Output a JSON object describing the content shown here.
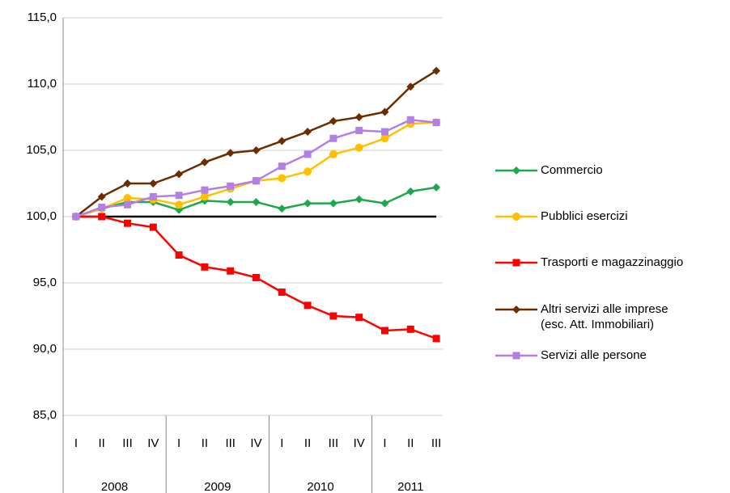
{
  "chart_data": {
    "type": "line",
    "categories": [
      "I",
      "II",
      "III",
      "IV",
      "I",
      "II",
      "III",
      "IV",
      "I",
      "II",
      "III",
      "IV",
      "I",
      "II",
      "III"
    ],
    "category_groups": [
      "2008",
      "2008",
      "2008",
      "2008",
      "2009",
      "2009",
      "2009",
      "2009",
      "2010",
      "2010",
      "2010",
      "2010",
      "2011",
      "2011",
      "2011"
    ],
    "ylim": [
      85,
      115
    ],
    "yticks": [
      {
        "value": 85,
        "label": "85,0"
      },
      {
        "value": 90,
        "label": "90,0"
      },
      {
        "value": 95,
        "label": "95,0"
      },
      {
        "value": 100,
        "label": "100,0"
      },
      {
        "value": 105,
        "label": "105,0"
      },
      {
        "value": 110,
        "label": "110,0"
      },
      {
        "value": 115,
        "label": "115,0"
      }
    ],
    "grid": true,
    "reference_line": 100,
    "legend": "right",
    "series": [
      {
        "name": "Commercio",
        "color": "#1ea84c",
        "marker": "diamond",
        "values": [
          100,
          100.6,
          101.1,
          101.1,
          100.5,
          101.2,
          101.1,
          101.1,
          100.6,
          101.0,
          101.0,
          101.3,
          101.0,
          101.9,
          102.2
        ]
      },
      {
        "name": "Pubblici esercizi",
        "color": "#ffc000",
        "marker": "circle",
        "values": [
          100,
          100.6,
          101.4,
          101.3,
          100.9,
          101.5,
          102.1,
          102.7,
          102.9,
          103.4,
          104.7,
          105.2,
          105.9,
          107.0,
          107.1
        ]
      },
      {
        "name": "Trasporti e magazzinaggio",
        "color": "#ff0000",
        "marker": "square",
        "values": [
          100,
          100.0,
          99.5,
          99.2,
          97.1,
          96.2,
          95.9,
          95.4,
          94.3,
          93.3,
          92.5,
          92.4,
          91.4,
          91.5,
          90.8
        ]
      },
      {
        "name": "Altri servizi alle imprese\n(esc. Att. Immobiliari)",
        "color": "#6b2d00",
        "marker": "diamond",
        "values": [
          100,
          101.5,
          102.5,
          102.5,
          103.2,
          104.1,
          104.8,
          105.0,
          105.7,
          106.4,
          107.2,
          107.5,
          107.9,
          109.8,
          111.0
        ]
      },
      {
        "name": "Servizi alle persone",
        "color": "#b27fe6",
        "marker": "square",
        "values": [
          100,
          100.7,
          100.9,
          101.5,
          101.6,
          102.0,
          102.3,
          102.7,
          103.8,
          104.7,
          105.9,
          106.5,
          106.4,
          107.3,
          107.1
        ]
      }
    ]
  }
}
